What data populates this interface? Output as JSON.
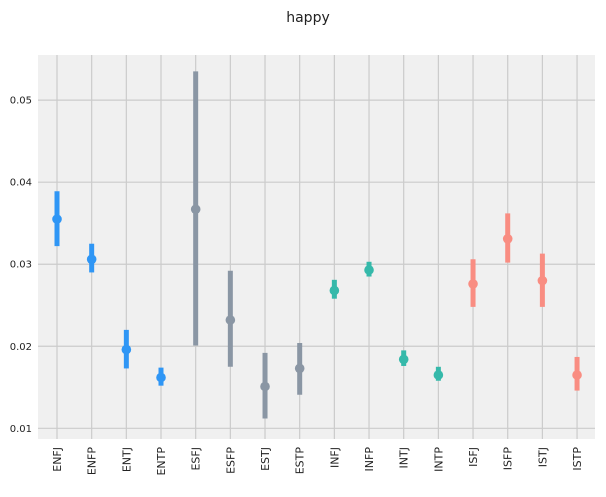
{
  "chart_data": {
    "type": "errorbar",
    "title": "happy",
    "xlabel": "",
    "ylabel": "",
    "ylim": [
      0.0087,
      0.0555
    ],
    "yticks": [
      0.01,
      0.02,
      0.03,
      0.04,
      0.05
    ],
    "ytick_labels": [
      "0.01",
      "0.02",
      "0.03",
      "0.04",
      "0.05"
    ],
    "grid": true,
    "categories": [
      "ENFJ",
      "ENFP",
      "ENTJ",
      "ENTP",
      "ESFJ",
      "ESFP",
      "ESTJ",
      "ESTP",
      "INFJ",
      "INFP",
      "INTJ",
      "INTP",
      "ISFJ",
      "ISFP",
      "ISTJ",
      "ISTP"
    ],
    "values": [
      0.0355,
      0.0306,
      0.0196,
      0.0162,
      0.0367,
      0.0232,
      0.0151,
      0.0173,
      0.0268,
      0.0293,
      0.0184,
      0.0165,
      0.0276,
      0.0331,
      0.028,
      0.0165
    ],
    "lower": [
      0.0322,
      0.029,
      0.0173,
      0.0152,
      0.0201,
      0.0175,
      0.0112,
      0.0141,
      0.0258,
      0.0285,
      0.0176,
      0.0158,
      0.0248,
      0.0302,
      0.0248,
      0.0146
    ],
    "upper": [
      0.0389,
      0.0325,
      0.022,
      0.0174,
      0.0535,
      0.0292,
      0.0192,
      0.0204,
      0.0281,
      0.0303,
      0.0195,
      0.0175,
      0.0306,
      0.0362,
      0.0313,
      0.0187
    ],
    "colors": [
      "#2f96f5",
      "#2f96f5",
      "#2f96f5",
      "#2f96f5",
      "#8a96a4",
      "#8a96a4",
      "#8a96a4",
      "#8a96a4",
      "#35b9aa",
      "#35b9aa",
      "#35b9aa",
      "#35b9aa",
      "#f98d82",
      "#f98d82",
      "#f98d82",
      "#f98d82"
    ]
  }
}
